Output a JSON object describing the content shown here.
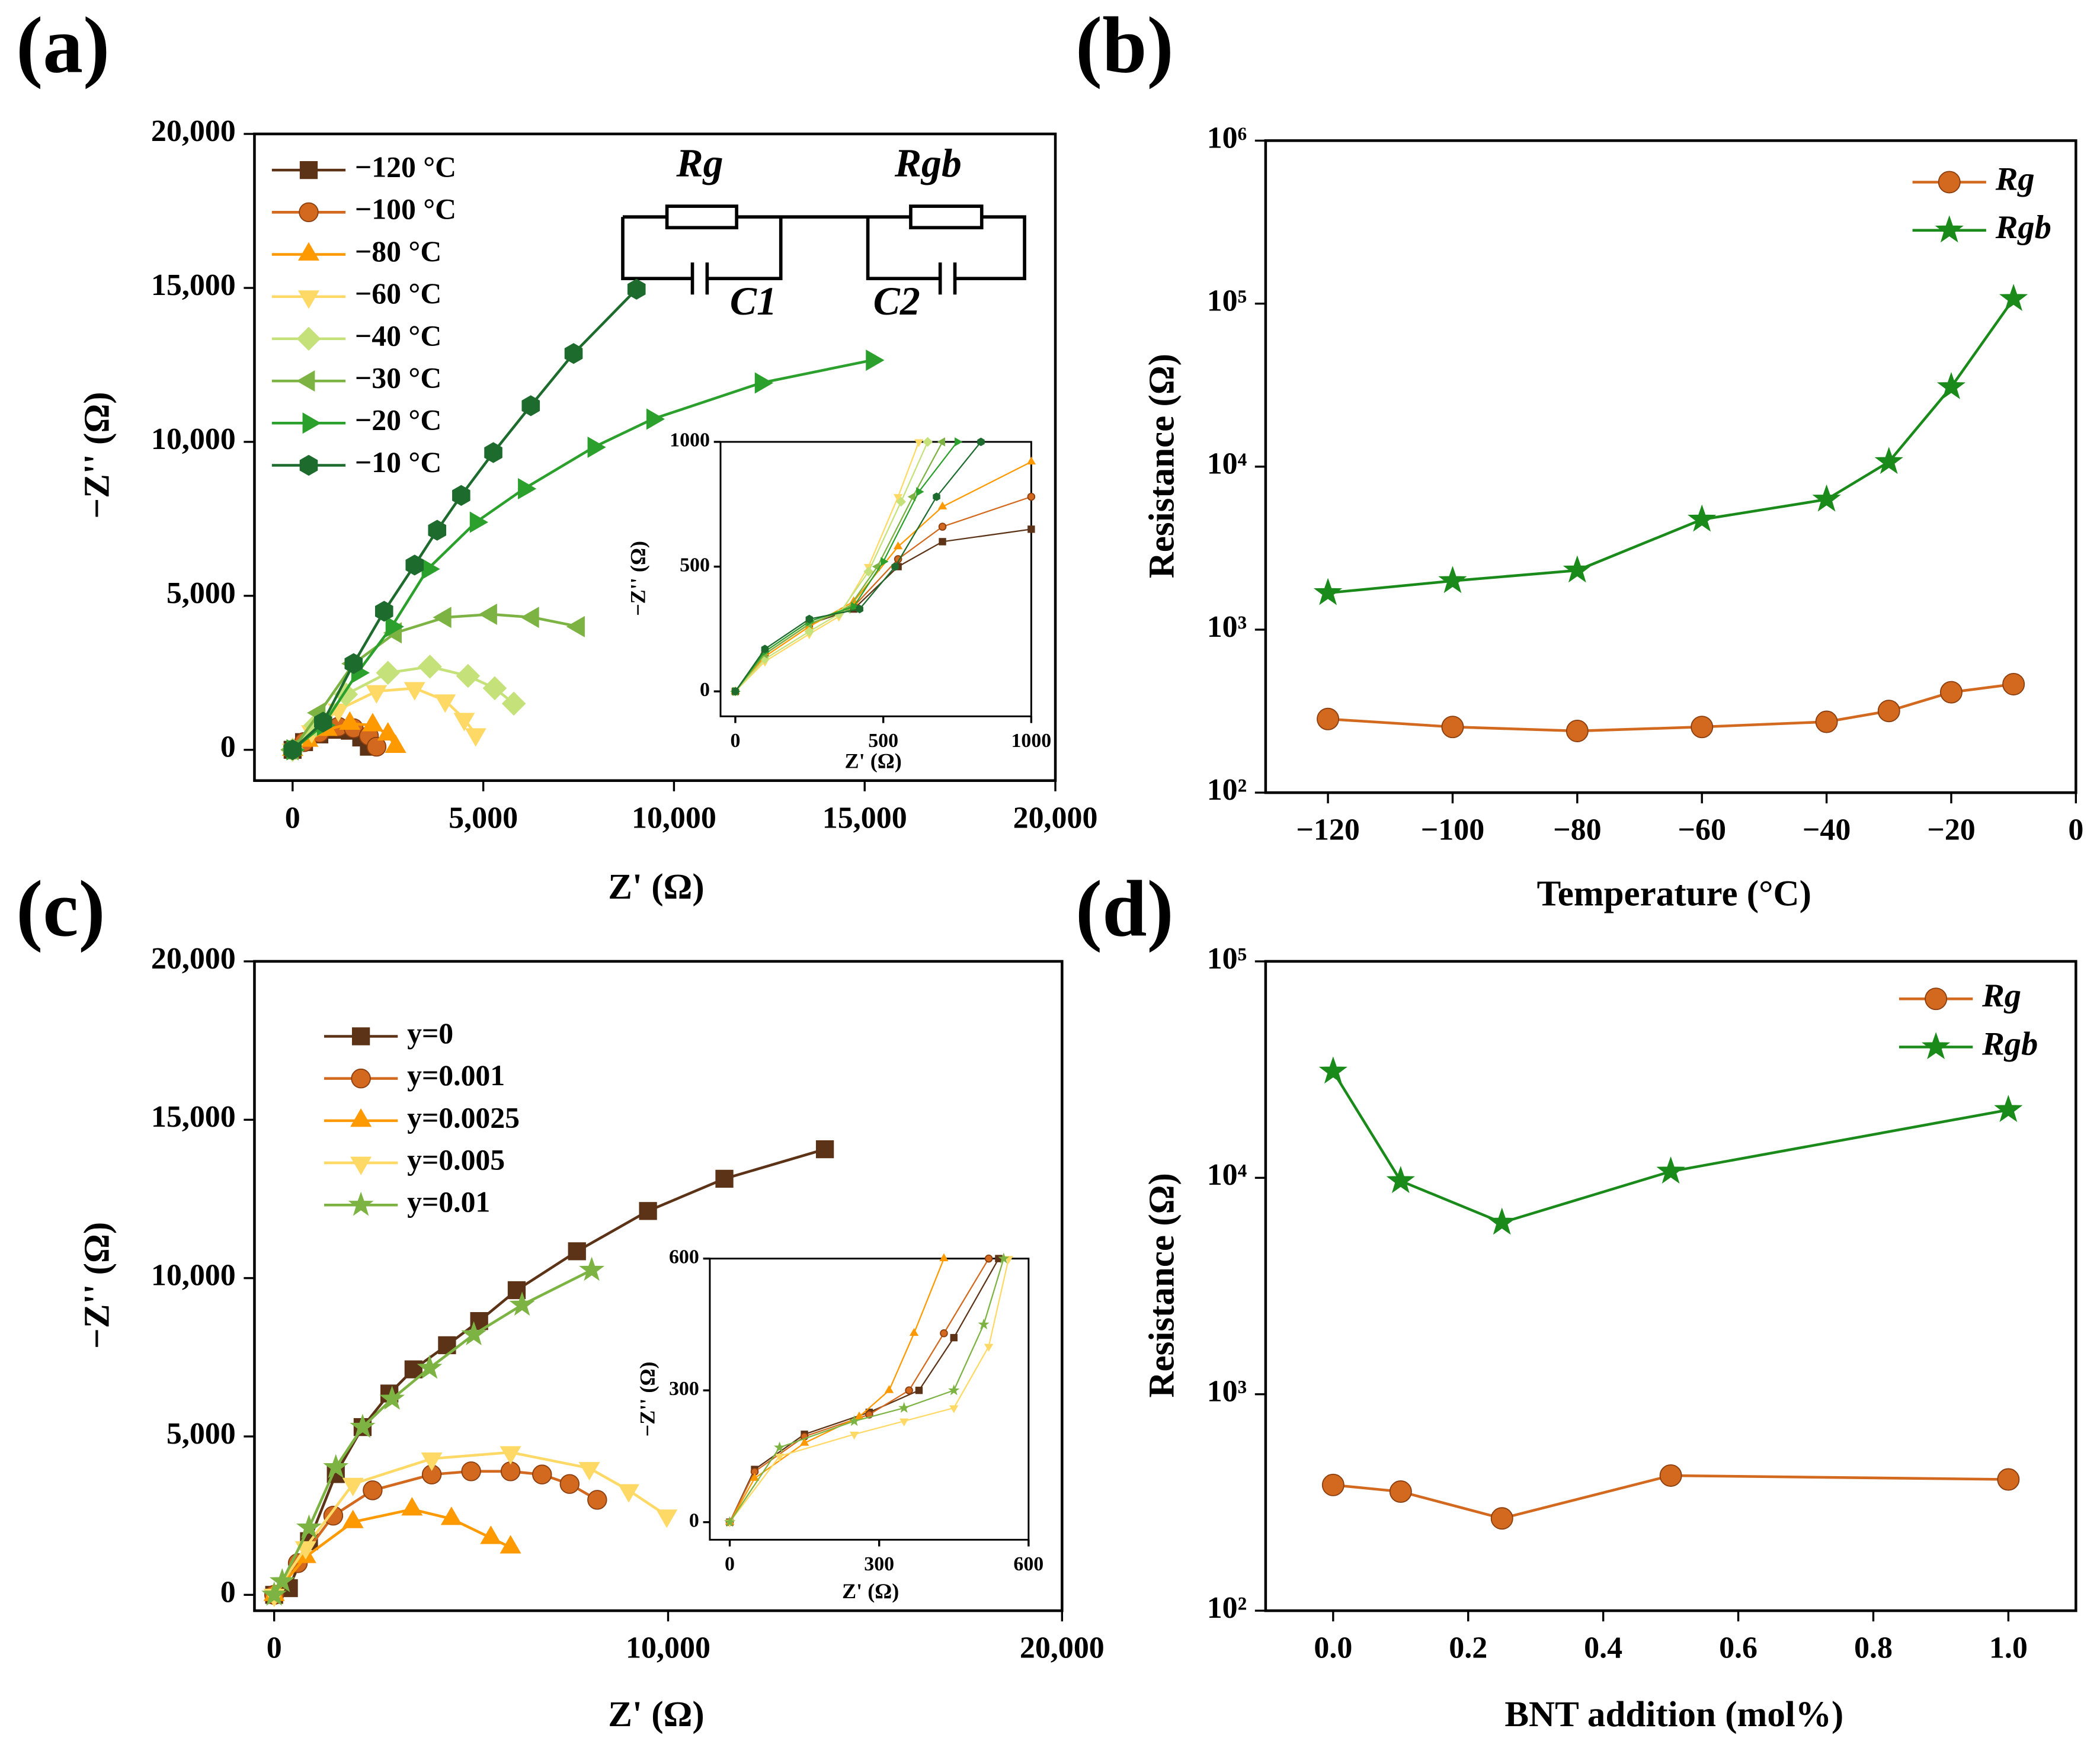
{
  "chart_data": [
    {
      "type": "line",
      "label": "(a)",
      "xlabel": "Z' (Ω)",
      "ylabel": "−Z'' (Ω)",
      "xlim": [
        -1000,
        20000
      ],
      "ylim": [
        -1000,
        20000
      ],
      "xticks": [
        0,
        {
          "value": 5000,
          "label": "5,000"
        },
        {
          "value": 10000,
          "label": "10,000"
        },
        {
          "value": 15000,
          "label": "15,000"
        },
        {
          "value": 20000,
          "label": "20,000"
        }
      ],
      "yticks": [
        0,
        {
          "value": 5000,
          "label": "5,000"
        },
        {
          "value": 10000,
          "label": "10,000"
        },
        {
          "value": 15000,
          "label": "15,000"
        },
        {
          "value": 20000,
          "label": "20,000"
        }
      ],
      "legend": "upper left",
      "annotations": [
        "Rg",
        "Rgb",
        "C1",
        "C2"
      ],
      "series": [
        {
          "name": "−120 °C",
          "color": "#5c3317",
          "marker": "square",
          "x": [
            0,
            300,
            700,
            1100,
            1500,
            1800,
            2000
          ],
          "values": [
            0,
            250,
            500,
            650,
            620,
            400,
            100
          ]
        },
        {
          "name": "−100 °C",
          "color": "#d2691e",
          "marker": "circle",
          "x": [
            0,
            300,
            700,
            1200,
            1600,
            2000,
            2200
          ],
          "values": [
            0,
            250,
            550,
            750,
            700,
            450,
            100
          ]
        },
        {
          "name": "−80 °C",
          "color": "#ff9900",
          "marker": "triangle-up",
          "x": [
            0,
            400,
            900,
            1500,
            2100,
            2500,
            2700
          ],
          "values": [
            0,
            300,
            650,
            850,
            800,
            500,
            100
          ]
        },
        {
          "name": "−60 °C",
          "color": "#ffd966",
          "marker": "triangle-down",
          "x": [
            0,
            500,
            1200,
            2200,
            3200,
            4000,
            4500,
            4800
          ],
          "values": [
            0,
            600,
            1300,
            1900,
            2000,
            1600,
            1000,
            500
          ]
        },
        {
          "name": "−40 °C",
          "color": "#c5e17a",
          "marker": "diamond",
          "x": [
            0,
            600,
            1400,
            2500,
            3600,
            4600,
            5300,
            5800
          ],
          "values": [
            0,
            800,
            1800,
            2500,
            2700,
            2400,
            2000,
            1500
          ]
        },
        {
          "name": "−30 °C",
          "color": "#7cb342",
          "marker": "triangle-left",
          "x": [
            0,
            700,
            1600,
            2700,
            4000,
            5200,
            6300,
            7500
          ],
          "values": [
            0,
            1200,
            2800,
            3800,
            4300,
            4400,
            4300,
            4000
          ]
        },
        {
          "name": "−20 °C",
          "color": "#2ca02c",
          "marker": "triangle-right",
          "x": [
            0,
            800,
            1700,
            2600,
            3544,
            4807,
            6070,
            7895,
            9439,
            12280,
            15193
          ],
          "values": [
            0,
            800,
            2500,
            4000,
            5870,
            7391,
            8478,
            9826,
            10739,
            11913,
            12652
          ]
        },
        {
          "name": "−10 °C",
          "color": "#1e6b2e",
          "marker": "hexagon",
          "x": [
            0,
            800,
            1600,
            2400,
            3200,
            3790,
            4421,
            5263,
            6245,
            7368,
            9018
          ],
          "values": [
            0,
            900,
            2800,
            4500,
            6000,
            7130,
            8260,
            9652,
            11174,
            12870,
            14957
          ]
        }
      ]
    },
    {
      "type": "line",
      "xlabel": "Z' (Ω)",
      "ylabel": "−Z'' (Ω)",
      "xlim": [
        -50,
        1000
      ],
      "ylim": [
        -100,
        1000
      ],
      "xticks": [
        0,
        500,
        1000
      ],
      "yticks": [
        0,
        500,
        1000
      ],
      "series": [
        {
          "color": "#5c3317",
          "marker": "square",
          "x": [
            0,
            100,
            250,
            400,
            550,
            700,
            1000
          ],
          "values": [
            0,
            150,
            270,
            330,
            500,
            600,
            650
          ]
        },
        {
          "color": "#d2691e",
          "marker": "circle",
          "x": [
            0,
            100,
            250,
            400,
            550,
            700,
            1000
          ],
          "values": [
            0,
            150,
            270,
            340,
            530,
            660,
            780
          ]
        },
        {
          "color": "#ff9900",
          "marker": "triangle-up",
          "x": [
            0,
            100,
            250,
            400,
            550,
            700,
            1000
          ],
          "values": [
            0,
            140,
            260,
            360,
            580,
            740,
            920
          ]
        },
        {
          "color": "#ffd966",
          "marker": "triangle-down",
          "x": [
            0,
            100,
            250,
            350,
            450,
            550,
            620
          ],
          "values": [
            0,
            120,
            230,
            300,
            500,
            780,
            1000
          ]
        },
        {
          "color": "#c5e17a",
          "marker": "diamond",
          "x": [
            0,
            100,
            250,
            350,
            450,
            560,
            650
          ],
          "values": [
            0,
            130,
            240,
            310,
            480,
            760,
            1000
          ]
        },
        {
          "color": "#7cb342",
          "marker": "triangle-left",
          "x": [
            0,
            100,
            250,
            380,
            480,
            600,
            700
          ],
          "values": [
            0,
            150,
            270,
            330,
            500,
            780,
            1000
          ]
        },
        {
          "color": "#2ca02c",
          "marker": "triangle-right",
          "x": [
            0,
            100,
            250,
            400,
            500,
            620,
            750
          ],
          "values": [
            0,
            160,
            280,
            340,
            520,
            800,
            1000
          ]
        },
        {
          "color": "#1e6b2e",
          "marker": "hexagon",
          "x": [
            0,
            100,
            250,
            420,
            540,
            680,
            830
          ],
          "values": [
            0,
            170,
            290,
            330,
            500,
            780,
            1000
          ]
        }
      ]
    },
    {
      "type": "line",
      "label": "(b)",
      "xlabel": "Temperature (°C)",
      "ylabel": "Resistance (Ω)",
      "yscale": "log",
      "x": [
        -120,
        -100,
        -80,
        -60,
        -40,
        -30,
        -20,
        -10
      ],
      "xlim": [
        -130,
        0
      ],
      "ylim": [
        100,
        1000000
      ],
      "xticks": [
        {
          "value": -120,
          "label": "−120"
        },
        {
          "value": -100,
          "label": "−100"
        },
        {
          "value": -80,
          "label": "−80"
        },
        {
          "value": -60,
          "label": "−60"
        },
        {
          "value": -40,
          "label": "−40"
        },
        {
          "value": -20,
          "label": "−20"
        },
        0
      ],
      "yticks": [
        {
          "value": 100,
          "label": "10²"
        },
        {
          "value": 1000,
          "label": "10³"
        },
        {
          "value": 10000,
          "label": "10⁴"
        },
        {
          "value": 100000,
          "label": "10⁵"
        },
        {
          "value": 1000000,
          "label": "10⁶"
        }
      ],
      "legend": "upper right",
      "series": [
        {
          "name": "Rg",
          "color": "#d2691e",
          "marker": "circle",
          "values": [
            283,
            253,
            239,
            253,
            272,
            317,
            413,
            463
          ]
        },
        {
          "name": "Rgb",
          "color": "#1a8a1a",
          "marker": "star",
          "values": [
            1680,
            1990,
            2310,
            4740,
            6290,
            10700,
            30800,
            107000
          ]
        }
      ]
    },
    {
      "type": "line",
      "label": "(c)",
      "xlabel": "Z' (Ω)",
      "ylabel": "−Z'' (Ω)",
      "xlim": [
        -500,
        20000
      ],
      "ylim": [
        -500,
        20000
      ],
      "xticks": [
        0,
        {
          "value": 10000,
          "label": "10,000"
        },
        {
          "value": 20000,
          "label": "20,000"
        }
      ],
      "yticks": [
        0,
        {
          "value": 5000,
          "label": "5,000"
        },
        {
          "value": 10000,
          "label": "10,000"
        },
        {
          "value": 15000,
          "label": "15,000"
        },
        {
          "value": 20000,
          "label": "20,000"
        }
      ],
      "legend": "upper left",
      "series": [
        {
          "name": "y=0",
          "color": "#5c3317",
          "marker": "square",
          "x": [
            0,
            374,
            884,
            1565,
            2245,
            2925,
            3537,
            4388,
            5204,
            6156,
            7687,
            9490,
            11429,
            13980
          ],
          "values": [
            0,
            212,
            1695,
            3814,
            5297,
            6356,
            7119,
            7881,
            8644,
            9619,
            10847,
            12119,
            13136,
            14068
          ]
        },
        {
          "name": "y=0.001",
          "color": "#d2691e",
          "marker": "circle",
          "x": [
            0,
            600,
            1500,
            2500,
            4000,
            5000,
            6000,
            6800,
            7500,
            8200
          ],
          "values": [
            0,
            1000,
            2500,
            3300,
            3800,
            3900,
            3900,
            3800,
            3500,
            3000
          ]
        },
        {
          "name": "y=0.0025",
          "color": "#ff9900",
          "marker": "triangle-up",
          "x": [
            0,
            800,
            2000,
            3500,
            4500,
            5500,
            6000
          ],
          "values": [
            0,
            1200,
            2300,
            2700,
            2400,
            1800,
            1500
          ]
        },
        {
          "name": "y=0.005",
          "color": "#ffd966",
          "marker": "triangle-down",
          "x": [
            0,
            800,
            2000,
            4000,
            6000,
            8000,
            9000,
            9966
          ],
          "values": [
            0,
            1500,
            3500,
            4300,
            4500,
            4000,
            3300,
            2500
          ]
        },
        {
          "name": "y=0.01",
          "color": "#7cb342",
          "marker": "star",
          "x": [
            0,
            204,
            884,
            1565,
            2245,
            2993,
            3946,
            5068,
            6293,
            8061
          ],
          "values": [
            0,
            424,
            2119,
            4025,
            5297,
            6186,
            7161,
            8220,
            9153,
            10254
          ]
        }
      ]
    },
    {
      "type": "line",
      "xlabel": "Z' (Ω)",
      "ylabel": "−Z'' (Ω)",
      "xlim": [
        -40,
        600
      ],
      "ylim": [
        -40,
        600
      ],
      "xticks": [
        0,
        300,
        600
      ],
      "yticks": [
        0,
        300,
        600
      ],
      "series": [
        {
          "color": "#5c3317",
          "marker": "square",
          "x": [
            0,
            50,
            150,
            280,
            380,
            450,
            540
          ],
          "values": [
            0,
            120,
            200,
            250,
            300,
            420,
            600
          ]
        },
        {
          "color": "#d2691e",
          "marker": "circle",
          "x": [
            0,
            50,
            150,
            280,
            360,
            430,
            520
          ],
          "values": [
            0,
            115,
            195,
            245,
            300,
            430,
            600
          ]
        },
        {
          "color": "#ff9900",
          "marker": "triangle-up",
          "x": [
            0,
            50,
            150,
            260,
            320,
            370,
            430
          ],
          "values": [
            0,
            100,
            180,
            240,
            300,
            430,
            600
          ]
        },
        {
          "color": "#ffd966",
          "marker": "triangle-down",
          "x": [
            0,
            100,
            250,
            350,
            450,
            520,
            560
          ],
          "values": [
            0,
            150,
            200,
            230,
            260,
            400,
            600
          ]
        },
        {
          "color": "#7cb342",
          "marker": "star",
          "x": [
            0,
            100,
            250,
            350,
            450,
            510,
            550
          ],
          "values": [
            0,
            170,
            230,
            260,
            300,
            450,
            600
          ]
        }
      ]
    },
    {
      "type": "line",
      "label": "(d)",
      "xlabel": "BNT addition (mol%)",
      "ylabel": "Resistance (Ω)",
      "yscale": "log",
      "x": [
        0,
        0.1,
        0.25,
        0.5,
        1.0
      ],
      "xlim": [
        -0.1,
        1.1
      ],
      "ylim": [
        100,
        100000
      ],
      "xticks": [
        {
          "value": 0,
          "label": "0.0"
        },
        0.2,
        0.4,
        0.6,
        0.8,
        {
          "value": 1,
          "label": "1.0"
        }
      ],
      "yticks": [
        {
          "value": 100,
          "label": "10²"
        },
        {
          "value": 1000,
          "label": "10³"
        },
        {
          "value": 10000,
          "label": "10⁴"
        },
        {
          "value": 100000,
          "label": "10⁵"
        }
      ],
      "legend": "upper right",
      "series": [
        {
          "name": "Rg",
          "color": "#d2691e",
          "marker": "circle",
          "values": [
            381,
            355,
            267,
            421,
            404
          ]
        },
        {
          "name": "Rgb",
          "color": "#1a8a1a",
          "marker": "star",
          "values": [
            31000,
            9670,
            6210,
            10700,
            20600
          ]
        }
      ]
    }
  ]
}
